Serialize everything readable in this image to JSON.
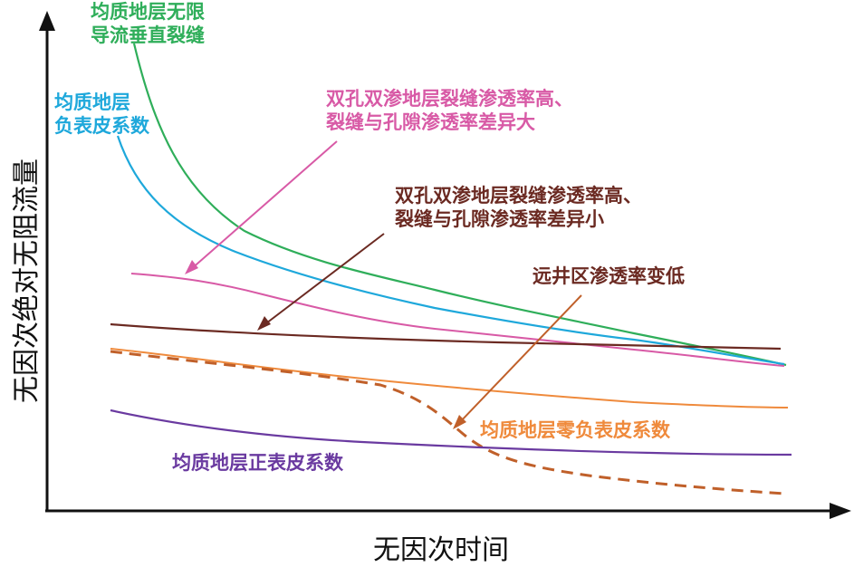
{
  "axes": {
    "x_title": "无因次时间",
    "y_title": "无因次绝对无阻流量"
  },
  "colors": {
    "axis": "#111111",
    "green": "#2fae5a",
    "cyan": "#1ea8db",
    "pink": "#d85aa6",
    "brown": "#6b2a22",
    "orange": "#ef8a3c",
    "dashed": "#c0602a",
    "purple": "#6a3aa0"
  },
  "curves": [
    {
      "id": "infinite-fracture",
      "lines": [
        "均质地层无限",
        "导流垂直裂缝"
      ],
      "color_key": "green",
      "style": "solid"
    },
    {
      "id": "negative-skin",
      "lines": [
        "均质地层",
        "负表皮系数"
      ],
      "color_key": "cyan",
      "style": "solid"
    },
    {
      "id": "dual-porosity-large",
      "lines": [
        "双孔双渗地层裂缝渗透率高、",
        "裂缝与孔隙渗透率差异大"
      ],
      "color_key": "pink",
      "style": "solid"
    },
    {
      "id": "dual-porosity-small",
      "lines": [
        "双孔双渗地层裂缝渗透率高、",
        "裂缝与孔隙渗透率差异小"
      ],
      "color_key": "brown",
      "style": "solid"
    },
    {
      "id": "far-zone-low",
      "lines": [
        "远井区渗透率变低"
      ],
      "color_key": "dashed",
      "style": "dashed"
    },
    {
      "id": "zero-skin",
      "lines": [
        "均质地层零负表皮系数"
      ],
      "color_key": "orange",
      "style": "solid"
    },
    {
      "id": "positive-skin",
      "lines": [
        "均质地层正表皮系数"
      ],
      "color_key": "purple",
      "style": "solid"
    }
  ]
}
